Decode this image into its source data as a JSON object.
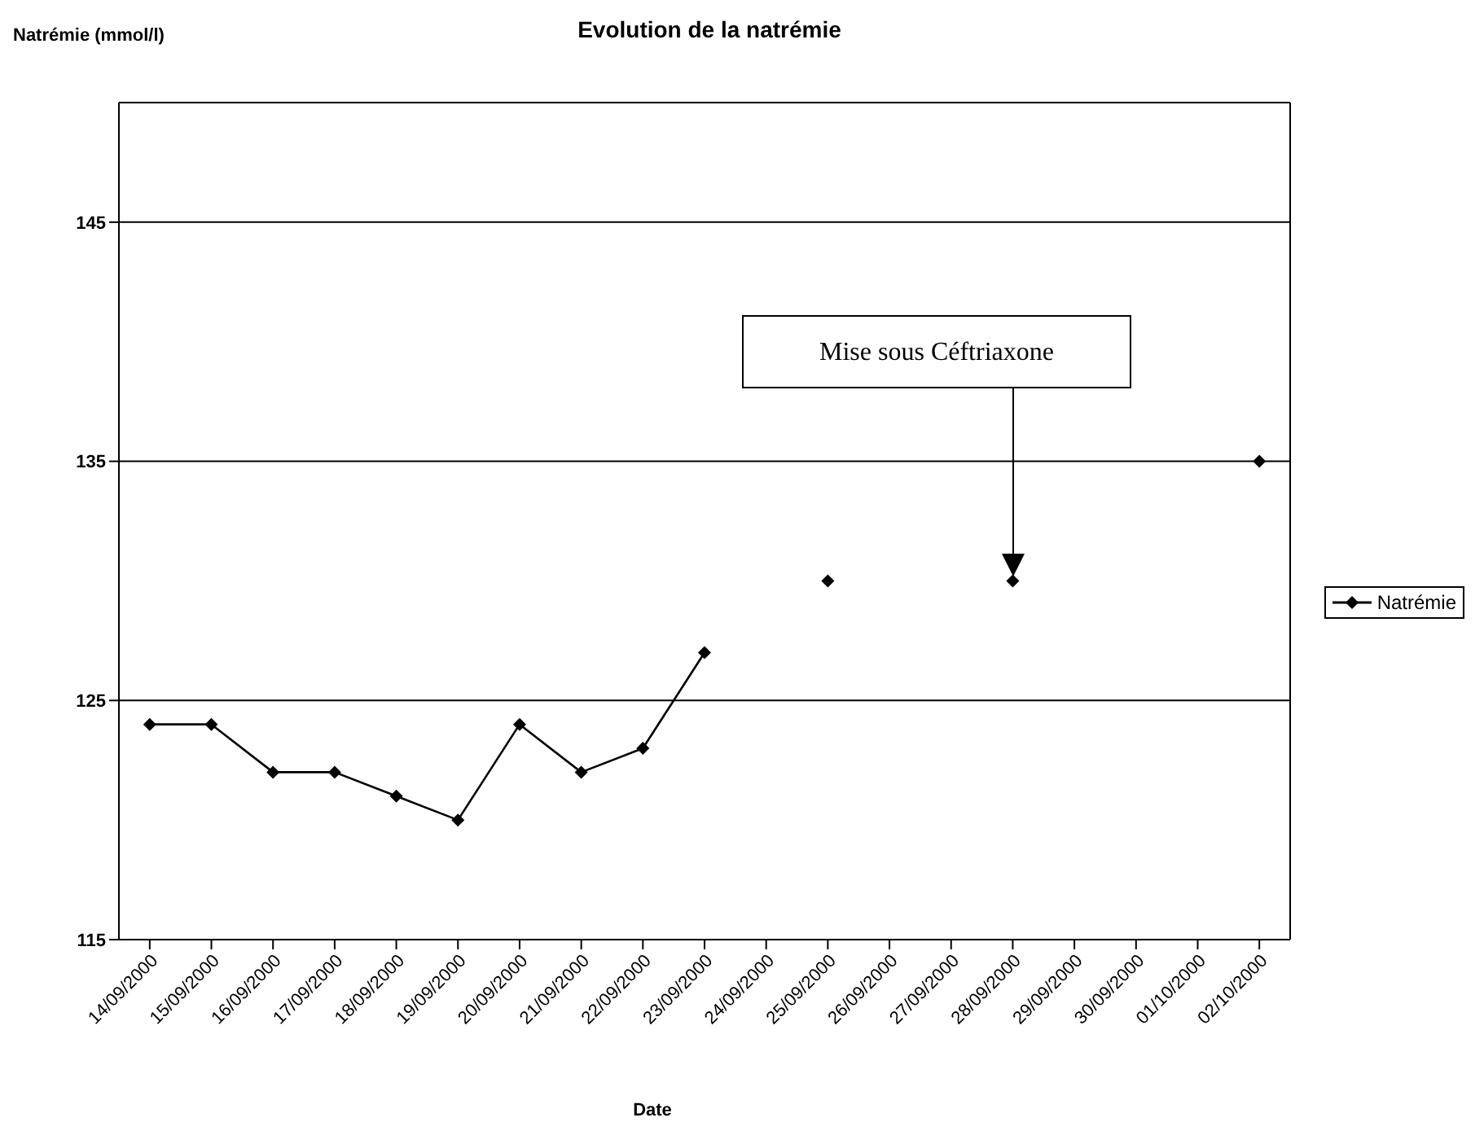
{
  "chart_data": {
    "type": "line",
    "title": "Evolution de la natrémie",
    "ylabel": "Natrémie (mmol/l)",
    "xlabel": "Date",
    "categories": [
      "14/09/2000",
      "15/09/2000",
      "16/09/2000",
      "17/09/2000",
      "18/09/2000",
      "19/09/2000",
      "20/09/2000",
      "21/09/2000",
      "22/09/2000",
      "23/09/2000",
      "24/09/2000",
      "25/09/2000",
      "26/09/2000",
      "27/09/2000",
      "28/09/2000",
      "29/09/2000",
      "30/09/2000",
      "01/10/2000",
      "02/10/2000"
    ],
    "series": [
      {
        "name": "Natrémie",
        "color": "#000000",
        "values": [
          124,
          124,
          122,
          122,
          121,
          120,
          124,
          122,
          123,
          127,
          null,
          130,
          null,
          null,
          130,
          null,
          null,
          null,
          135
        ]
      }
    ],
    "ylim": [
      115,
      150
    ],
    "yticks": [
      115,
      125,
      135,
      145
    ],
    "grid": "y",
    "legend": "right",
    "marker": "diamond",
    "line_style": "solid",
    "annotations": [
      "Mise sous Céftriaxone"
    ]
  }
}
